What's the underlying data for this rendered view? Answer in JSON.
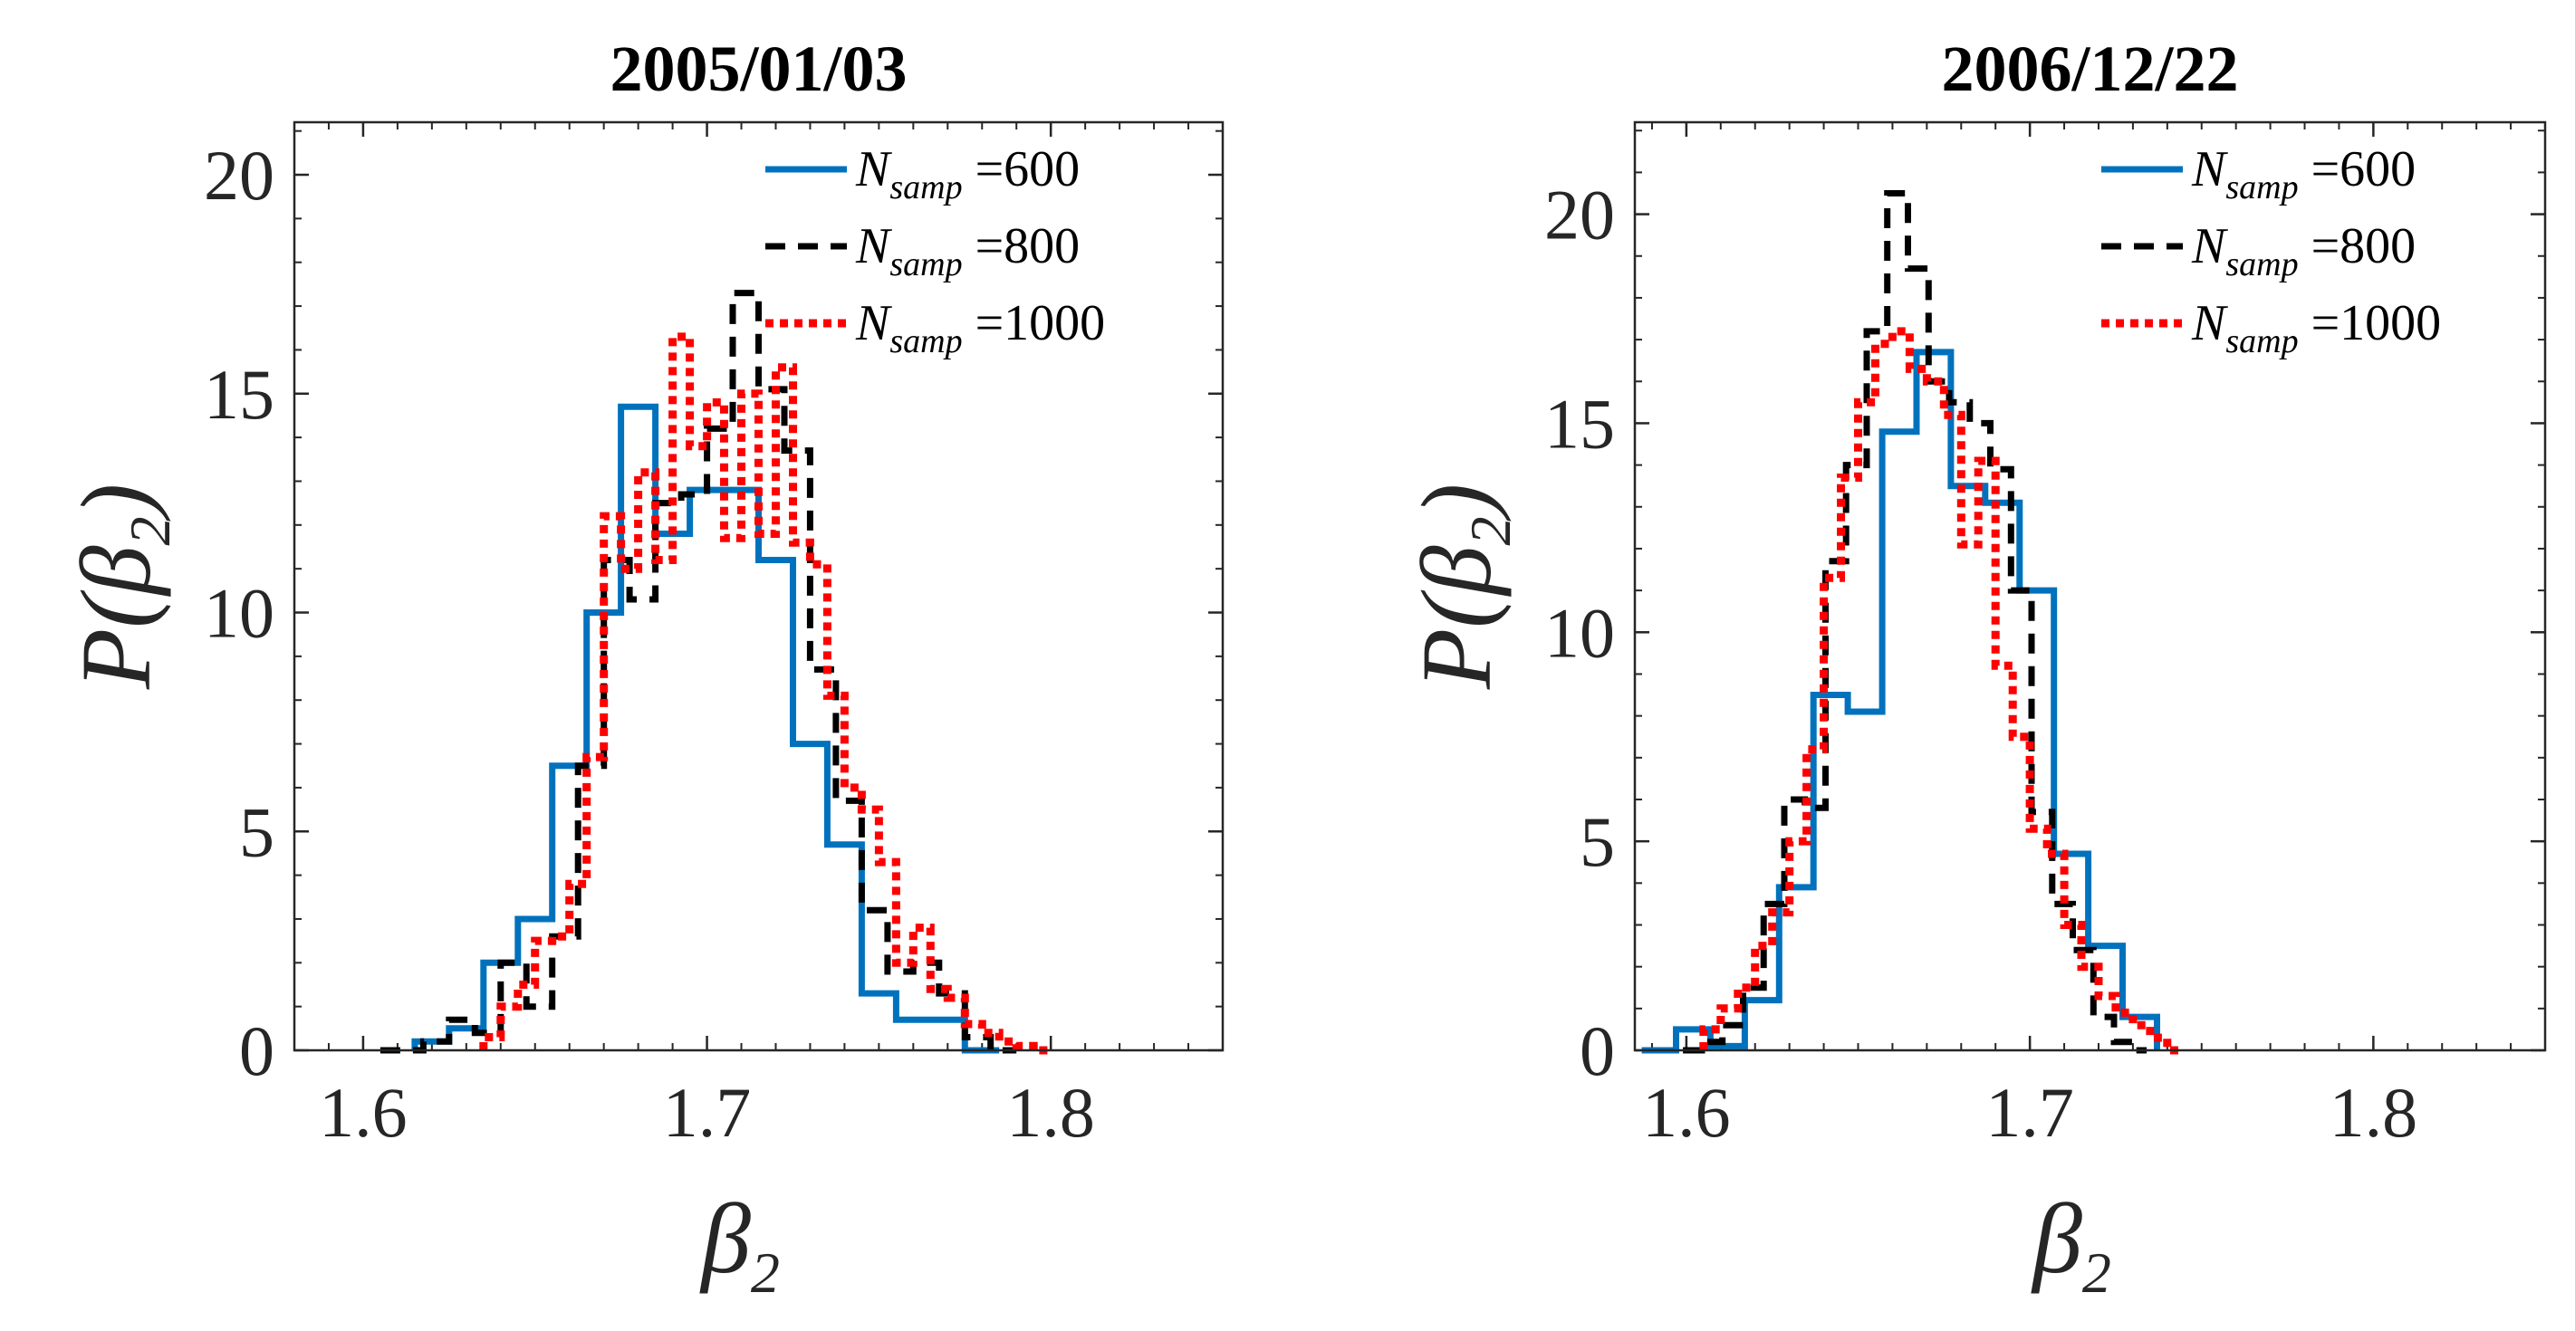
{
  "colors": {
    "s600": "#0072BD",
    "s800": "#000000",
    "s1000": "#FF0000",
    "axis": "#262626"
  },
  "chart_data": [
    {
      "type": "histogram",
      "title": "2005/01/03",
      "xlabel": {
        "sym": "β",
        "sub": "2"
      },
      "ylabel": {
        "pre": "P(",
        "sym": "β",
        "sub": "2",
        "post": ")"
      },
      "xlim": [
        1.58,
        1.85
      ],
      "ylim": [
        0,
        21.2
      ],
      "xticks": [
        {
          "v": 1.6,
          "label": "1.6"
        },
        {
          "v": 1.7,
          "label": "1.7"
        },
        {
          "v": 1.8,
          "label": "1.8"
        }
      ],
      "yticks": [
        {
          "v": 0,
          "label": "0"
        },
        {
          "v": 5,
          "label": "5"
        },
        {
          "v": 10,
          "label": "10"
        },
        {
          "v": 15,
          "label": "15"
        },
        {
          "v": 20,
          "label": "20"
        }
      ],
      "legend_position": "top-right",
      "series": [
        {
          "name": "600",
          "label_pre": "N",
          "label_sub": "samp",
          "label_post": " =600",
          "style": "solid",
          "edges": [
            1.615,
            1.625,
            1.635,
            1.645,
            1.655,
            1.665,
            1.675,
            1.685,
            1.695,
            1.705,
            1.715,
            1.725,
            1.735,
            1.745,
            1.755,
            1.765,
            1.775,
            1.785
          ],
          "values": [
            0.2,
            0.5,
            2.0,
            3.0,
            6.5,
            10.0,
            14.7,
            11.8,
            12.8,
            12.8,
            11.2,
            7.0,
            4.7,
            1.3,
            0.7,
            0.7,
            0
          ]
        },
        {
          "name": "800",
          "label_pre": "N",
          "label_sub": "samp",
          "label_post": " =800",
          "style": "dashed",
          "edges": [
            1.605,
            1.6175,
            1.625,
            1.6325,
            1.64,
            1.6475,
            1.655,
            1.6625,
            1.67,
            1.6775,
            1.685,
            1.6925,
            1.7,
            1.7075,
            1.715,
            1.7225,
            1.73,
            1.7375,
            1.745,
            1.7525,
            1.76,
            1.7675,
            1.775,
            1.7825,
            1.79
          ],
          "values": [
            0,
            0.2,
            0.7,
            0.4,
            2.0,
            1.0,
            2.6,
            6.5,
            11.2,
            10.3,
            12.5,
            12.7,
            14.2,
            17.3,
            15.1,
            13.7,
            8.7,
            5.7,
            3.2,
            1.8,
            2.0,
            1.3,
            0.3,
            0
          ]
        },
        {
          "name": "1000",
          "label_pre": "N",
          "label_sub": "samp",
          "label_post": " =1000",
          "style": "dotted",
          "edges": [
            1.635,
            1.64,
            1.645,
            1.65,
            1.655,
            1.66,
            1.665,
            1.67,
            1.675,
            1.68,
            1.685,
            1.69,
            1.695,
            1.7,
            1.705,
            1.71,
            1.715,
            1.72,
            1.725,
            1.73,
            1.735,
            1.74,
            1.745,
            1.75,
            1.755,
            1.76,
            1.765,
            1.77,
            1.775,
            1.78,
            1.785,
            1.79,
            1.795,
            1.8
          ],
          "values": [
            0.3,
            1.0,
            1.5,
            2.5,
            2.6,
            3.8,
            6.7,
            12.2,
            11.0,
            13.2,
            11.2,
            16.3,
            13.8,
            14.8,
            11.7,
            15.0,
            11.8,
            15.6,
            11.6,
            11.1,
            8.1,
            6.0,
            5.5,
            4.3,
            2.0,
            2.8,
            1.4,
            1.2,
            0.6,
            0.4,
            0.2,
            0.1,
            0
          ]
        }
      ]
    },
    {
      "type": "histogram",
      "title": "2006/12/22",
      "xlabel": {
        "sym": "β",
        "sub": "2"
      },
      "ylabel": {
        "pre": "P(",
        "sym": "β",
        "sub": "2",
        "post": ")"
      },
      "xlim": [
        1.585,
        1.85
      ],
      "ylim": [
        0,
        22.2
      ],
      "xticks": [
        {
          "v": 1.6,
          "label": "1.6"
        },
        {
          "v": 1.7,
          "label": "1.7"
        },
        {
          "v": 1.8,
          "label": "1.8"
        }
      ],
      "yticks": [
        {
          "v": 0,
          "label": "0"
        },
        {
          "v": 5,
          "label": "5"
        },
        {
          "v": 10,
          "label": "10"
        },
        {
          "v": 15,
          "label": "15"
        },
        {
          "v": 20,
          "label": "20"
        }
      ],
      "legend_position": "top-right",
      "series": [
        {
          "name": "600",
          "label_pre": "N",
          "label_sub": "samp",
          "label_post": " =600",
          "style": "solid",
          "edges": [
            1.587,
            1.597,
            1.607,
            1.617,
            1.627,
            1.637,
            1.647,
            1.657,
            1.667,
            1.677,
            1.687,
            1.697,
            1.707,
            1.717,
            1.727,
            1.737
          ],
          "values": [
            0,
            0.5,
            0.1,
            1.2,
            3.9,
            8.5,
            8.1,
            14.8,
            16.7,
            13.5,
            13.1,
            11.0,
            4.7,
            2.5,
            0.8,
            0
          ]
        },
        {
          "name": "800",
          "label_pre": "N",
          "label_sub": "samp",
          "label_post": " =800",
          "style": "dashed",
          "edges": [
            1.599,
            1.6045,
            1.6105,
            1.6165,
            1.6225,
            1.6285,
            1.6345,
            1.6405,
            1.6465,
            1.6525,
            1.6585,
            1.6645,
            1.6705,
            1.6765,
            1.6825,
            1.6885,
            1.6945,
            1.7005,
            1.7065,
            1.7125,
            1.7185,
            1.7245,
            1.7305,
            1.734
          ],
          "values": [
            0,
            0.2,
            0.6,
            1.5,
            3.5,
            6.0,
            5.8,
            11.7,
            14.0,
            17.2,
            20.5,
            18.7,
            16.0,
            15.5,
            15.0,
            13.9,
            11.0,
            5.7,
            3.5,
            2.4,
            0.8,
            0.2,
            0
          ]
        },
        {
          "name": "1000",
          "label_pre": "N",
          "label_sub": "samp",
          "label_post": " =1000",
          "style": "dotted",
          "edges": [
            1.605,
            1.61,
            1.615,
            1.62,
            1.625,
            1.63,
            1.635,
            1.64,
            1.645,
            1.65,
            1.655,
            1.66,
            1.665,
            1.67,
            1.675,
            1.68,
            1.685,
            1.69,
            1.695,
            1.7,
            1.705,
            1.71,
            1.715,
            1.72,
            1.725,
            1.73,
            1.735,
            1.74,
            1.745
          ],
          "values": [
            0.5,
            1.0,
            1.5,
            2.5,
            3.3,
            5.0,
            7.2,
            11.3,
            13.7,
            15.5,
            16.9,
            17.2,
            16.3,
            16.0,
            15.2,
            12.1,
            14.1,
            9.2,
            7.5,
            5.3,
            4.7,
            3.0,
            2.0,
            1.3,
            0.9,
            0.6,
            0.3,
            0
          ]
        }
      ]
    }
  ]
}
